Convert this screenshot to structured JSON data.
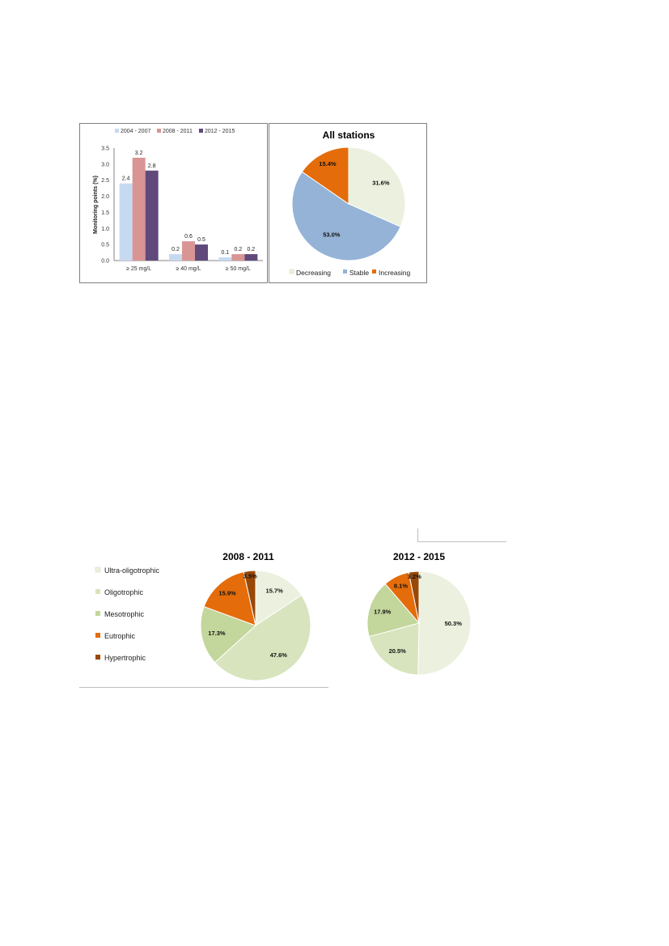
{
  "chart_data": [
    {
      "type": "bar",
      "ylabel": "Monitoring points (%)",
      "ylim": [
        0,
        3.5
      ],
      "yticks": [
        "0.0",
        "0.5",
        "1.0",
        "1.5",
        "2.0",
        "2.5",
        "3.0",
        "3.5"
      ],
      "categories": [
        "≥ 25 mg/L",
        "≥ 40 mg/L",
        "≥ 50 mg/L"
      ],
      "legend_position": "top",
      "series": [
        {
          "name": "2004 - 2007",
          "color": "#c6d9f1",
          "values": [
            2.4,
            0.2,
            0.1
          ]
        },
        {
          "name": "2008 - 2011",
          "color": "#d99594",
          "values": [
            3.2,
            0.6,
            0.2
          ]
        },
        {
          "name": "2012 - 2015",
          "color": "#604a7b",
          "values": [
            2.8,
            0.5,
            0.2
          ]
        }
      ]
    },
    {
      "type": "pie",
      "title": "All stations",
      "legend_position": "bottom",
      "slices": [
        {
          "label": "Decreasing",
          "value": 31.6,
          "display": "31.6%",
          "color": "#ebf1de"
        },
        {
          "label": "Stable",
          "value": 53.0,
          "display": "53.0%",
          "color": "#95b3d7"
        },
        {
          "label": "Increasing",
          "value": 15.4,
          "display": "15.4%",
          "color": "#e46c0a"
        }
      ]
    },
    {
      "type": "pie",
      "title": "2008 - 2011",
      "slices": [
        {
          "label": "Ultra-oligotrophic",
          "value": 15.7,
          "display": "15.7%",
          "color": "#ebf1de"
        },
        {
          "label": "Oligotrophic",
          "value": 47.6,
          "display": "47.6%",
          "color": "#d7e4bd"
        },
        {
          "label": "Mesotrophic",
          "value": 17.3,
          "display": "17.3%",
          "color": "#c3d69b"
        },
        {
          "label": "Eutrophic",
          "value": 15.9,
          "display": "15.9%",
          "color": "#e46c0a"
        },
        {
          "label": "Hypertrophic",
          "value": 3.5,
          "display": "3.5%",
          "color": "#984807"
        }
      ]
    },
    {
      "type": "pie",
      "title": "2012 - 2015",
      "slices": [
        {
          "label": "Ultra-oligotrophic",
          "value": 50.3,
          "display": "50.3%",
          "color": "#ebf1de"
        },
        {
          "label": "Oligotrophic",
          "value": 20.5,
          "display": "20.5%",
          "color": "#d7e4bd"
        },
        {
          "label": "Mesotrophic",
          "value": 17.9,
          "display": "17.9%",
          "color": "#c3d69b"
        },
        {
          "label": "Eutrophic",
          "value": 8.1,
          "display": "8.1%",
          "color": "#e46c0a"
        },
        {
          "label": "Hypertrophic",
          "value": 3.2,
          "display": "3.2%",
          "color": "#984807"
        }
      ]
    }
  ],
  "trophic_legend": [
    {
      "label": "Ultra-oligotrophic",
      "color": "#ebf1de"
    },
    {
      "label": "Oligotrophic",
      "color": "#d7e4bd"
    },
    {
      "label": "Mesotrophic",
      "color": "#c3d69b"
    },
    {
      "label": "Eutrophic",
      "color": "#e46c0a"
    },
    {
      "label": "Hypertrophic",
      "color": "#984807"
    }
  ]
}
